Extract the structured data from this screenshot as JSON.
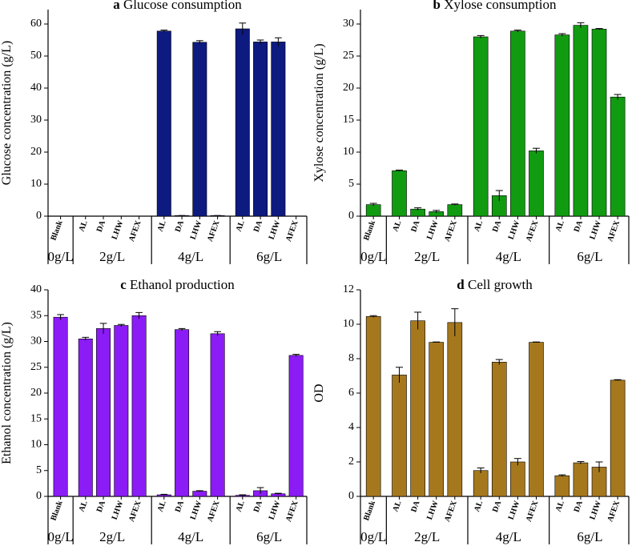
{
  "chart_data": [
    {
      "type": "bar",
      "label": "a",
      "title": "Glucose consumption",
      "ylabel": "Glucose concentration (g/L)",
      "color": "#0d1a80",
      "ylim": [
        0,
        64.5
      ],
      "yticks": [
        0,
        10,
        20,
        30,
        40,
        50,
        60
      ],
      "groups": [
        {
          "name": "0g/L",
          "categories": [
            "Blank"
          ],
          "values": [
            0
          ],
          "errors": [
            0
          ]
        },
        {
          "name": "2g/L",
          "categories": [
            "AL",
            "DA",
            "LHW",
            "AFEX"
          ],
          "values": [
            0,
            0,
            0,
            0
          ],
          "errors": [
            0,
            0,
            0,
            0
          ]
        },
        {
          "name": "4g/L",
          "categories": [
            "AL",
            "DA",
            "LHW",
            "AFEX"
          ],
          "values": [
            57.8,
            0.2,
            54.3,
            0.2
          ],
          "errors": [
            0.3,
            0,
            0.5,
            0
          ]
        },
        {
          "name": "6g/L",
          "categories": [
            "AL",
            "DA",
            "LHW",
            "AFEX"
          ],
          "values": [
            58.5,
            54.4,
            54.4,
            0
          ],
          "errors": [
            1.8,
            0.6,
            1.3,
            0
          ]
        }
      ]
    },
    {
      "type": "bar",
      "label": "b",
      "title": "Xylose consumption",
      "ylabel": "Xylose concentration (g/L)",
      "color": "#119b11",
      "ylim": [
        0,
        32.25
      ],
      "yticks": [
        0,
        5,
        10,
        15,
        20,
        25,
        30
      ],
      "groups": [
        {
          "name": "0g/L",
          "categories": [
            "Blank"
          ],
          "values": [
            1.8
          ],
          "errors": [
            0.2
          ]
        },
        {
          "name": "2g/L",
          "categories": [
            "AL",
            "DA",
            "LHW",
            "AFEX"
          ],
          "values": [
            7.1,
            1.1,
            0.7,
            1.8
          ],
          "errors": [
            0.1,
            0.2,
            0.2,
            0.1
          ]
        },
        {
          "name": "4g/L",
          "categories": [
            "AL",
            "DA",
            "LHW",
            "AFEX"
          ],
          "values": [
            28.0,
            3.2,
            28.9,
            10.2
          ],
          "errors": [
            0.2,
            0.8,
            0.15,
            0.4
          ]
        },
        {
          "name": "6g/L",
          "categories": [
            "AL",
            "DA",
            "LHW",
            "AFEX"
          ],
          "values": [
            28.3,
            29.8,
            29.2,
            18.6
          ],
          "errors": [
            0.2,
            0.4,
            0.1,
            0.4
          ]
        }
      ]
    },
    {
      "type": "bar",
      "label": "c",
      "title": "Ethanol production",
      "ylabel": "Ethanol concentration (g/L)",
      "color": "#8b1cf5",
      "ylim": [
        0,
        40
      ],
      "yticks": [
        0,
        5,
        10,
        15,
        20,
        25,
        30,
        35,
        40
      ],
      "groups": [
        {
          "name": "0g/L",
          "categories": [
            "Blank"
          ],
          "values": [
            34.7
          ],
          "errors": [
            0.5
          ]
        },
        {
          "name": "2g/L",
          "categories": [
            "AL",
            "DA",
            "LHW",
            "AFEX"
          ],
          "values": [
            30.5,
            32.5,
            33.1,
            35.0
          ],
          "errors": [
            0.3,
            1.0,
            0.2,
            0.6
          ]
        },
        {
          "name": "4g/L",
          "categories": [
            "AL",
            "DA",
            "LHW",
            "AFEX"
          ],
          "values": [
            0.3,
            32.3,
            1.0,
            31.5
          ],
          "errors": [
            0.1,
            0.2,
            0.1,
            0.4
          ]
        },
        {
          "name": "6g/L",
          "categories": [
            "AL",
            "DA",
            "LHW",
            "AFEX"
          ],
          "values": [
            0.2,
            1.1,
            0.5,
            27.3
          ],
          "errors": [
            0.1,
            0.6,
            0.1,
            0.2
          ]
        }
      ]
    },
    {
      "type": "bar",
      "label": "d",
      "title": "Cell growth",
      "ylabel": "OD",
      "color": "#a6781e",
      "ylim": [
        0,
        12
      ],
      "yticks": [
        0,
        2,
        4,
        6,
        8,
        10,
        12
      ],
      "groups": [
        {
          "name": "0g/L",
          "categories": [
            "Blank"
          ],
          "values": [
            10.45
          ],
          "errors": [
            0.05
          ]
        },
        {
          "name": "2g/L",
          "categories": [
            "AL",
            "DA",
            "LHW",
            "AFEX"
          ],
          "values": [
            7.05,
            10.2,
            8.95,
            10.1
          ],
          "errors": [
            0.45,
            0.5,
            0.02,
            0.8
          ]
        },
        {
          "name": "4g/L",
          "categories": [
            "AL",
            "DA",
            "LHW",
            "AFEX"
          ],
          "values": [
            1.5,
            7.8,
            2.0,
            8.95
          ],
          "errors": [
            0.15,
            0.15,
            0.2,
            0.02
          ]
        },
        {
          "name": "6g/L",
          "categories": [
            "AL",
            "DA",
            "LHW",
            "AFEX"
          ],
          "values": [
            1.2,
            1.95,
            1.7,
            6.75
          ],
          "errors": [
            0.05,
            0.07,
            0.3,
            0.03
          ]
        }
      ]
    }
  ]
}
